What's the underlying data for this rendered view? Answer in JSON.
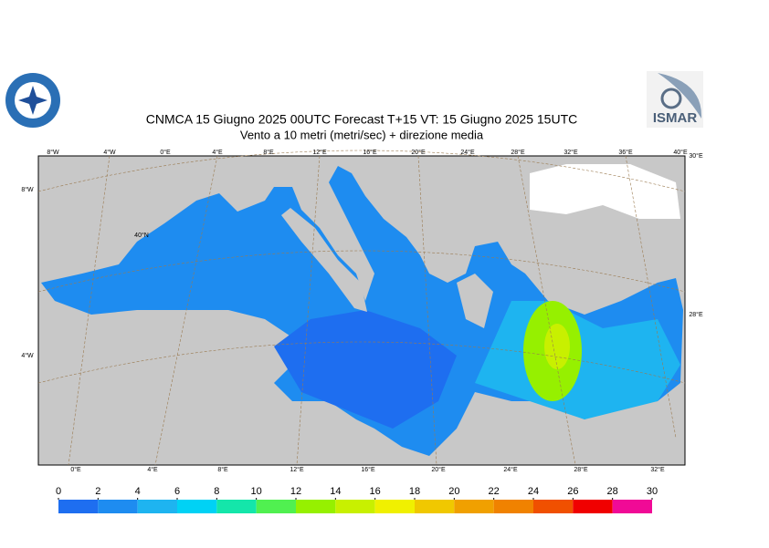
{
  "header": {
    "title": "CNMCA 15   Giugno  2025 00UTC Forecast T+15 VT: 15   Giugno  2025 15UTC",
    "subtitle": "Vento a 10 metri (metri/sec) + direzione media"
  },
  "logo_right": {
    "text": "ISMAR"
  },
  "map": {
    "labels_top": [
      "8°W",
      "4°W",
      "0°E",
      "4°E",
      "8°E",
      "12°E",
      "16°E",
      "20°E",
      "24°E",
      "28°E",
      "32°E",
      "36°E",
      "40°E"
    ],
    "labels_bottom": [
      "0°E",
      "4°E",
      "8°E",
      "12°E",
      "16°E",
      "20°E",
      "24°E",
      "28°E",
      "32°E"
    ],
    "labels_left": [
      "8°W",
      "40°N",
      "4°W"
    ],
    "labels_right": [
      "30°E",
      "28°E"
    ]
  },
  "colorbar": {
    "ticks": [
      0,
      2,
      4,
      6,
      8,
      10,
      12,
      14,
      16,
      18,
      20,
      22,
      24,
      26,
      28,
      30
    ],
    "colors": [
      "#1e6ef0",
      "#1e8cf0",
      "#1eb4f0",
      "#00d2f5",
      "#14e6aa",
      "#50f050",
      "#96f000",
      "#c8f000",
      "#f0f000",
      "#f0c800",
      "#f0a000",
      "#f08200",
      "#f05000",
      "#f00000",
      "#f00a96"
    ]
  }
}
